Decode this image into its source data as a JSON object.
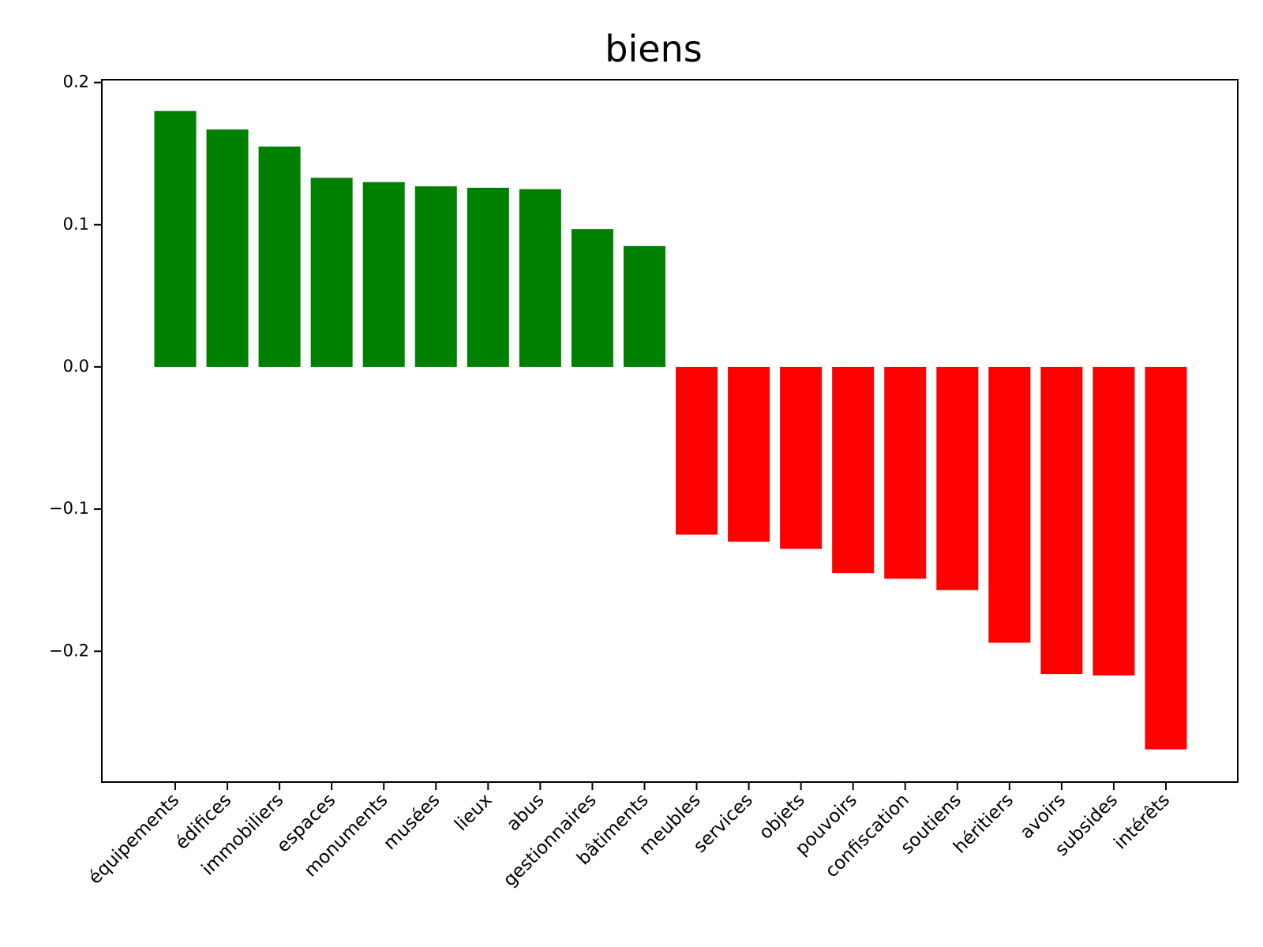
{
  "chart_data": {
    "type": "bar",
    "title": "biens",
    "xlabel": "",
    "ylabel": "",
    "categories": [
      "équipements",
      "édifices",
      "immobiliers",
      "espaces",
      "monuments",
      "musées",
      "lieux",
      "abus",
      "gestionnaires",
      "bâtiments",
      "meubles",
      "services",
      "objets",
      "pouvoirs",
      "confiscation",
      "soutiens",
      "héritiers",
      "avoirs",
      "subsides",
      "intérêts"
    ],
    "values": [
      0.18,
      0.167,
      0.155,
      0.133,
      0.13,
      0.127,
      0.126,
      0.125,
      0.097,
      0.085,
      -0.118,
      -0.123,
      -0.128,
      -0.145,
      -0.149,
      -0.157,
      -0.194,
      -0.216,
      -0.217,
      -0.269
    ],
    "ylim": [
      -0.292,
      0.202
    ],
    "yticks": [
      -0.2,
      -0.1,
      0.0,
      0.1,
      0.2
    ],
    "ytick_labels": [
      "−0.2",
      "−0.1",
      "0.0",
      "0.1",
      "0.2"
    ],
    "grid": false,
    "colors": {
      "positive": "#008000",
      "negative": "#ff0000"
    }
  }
}
